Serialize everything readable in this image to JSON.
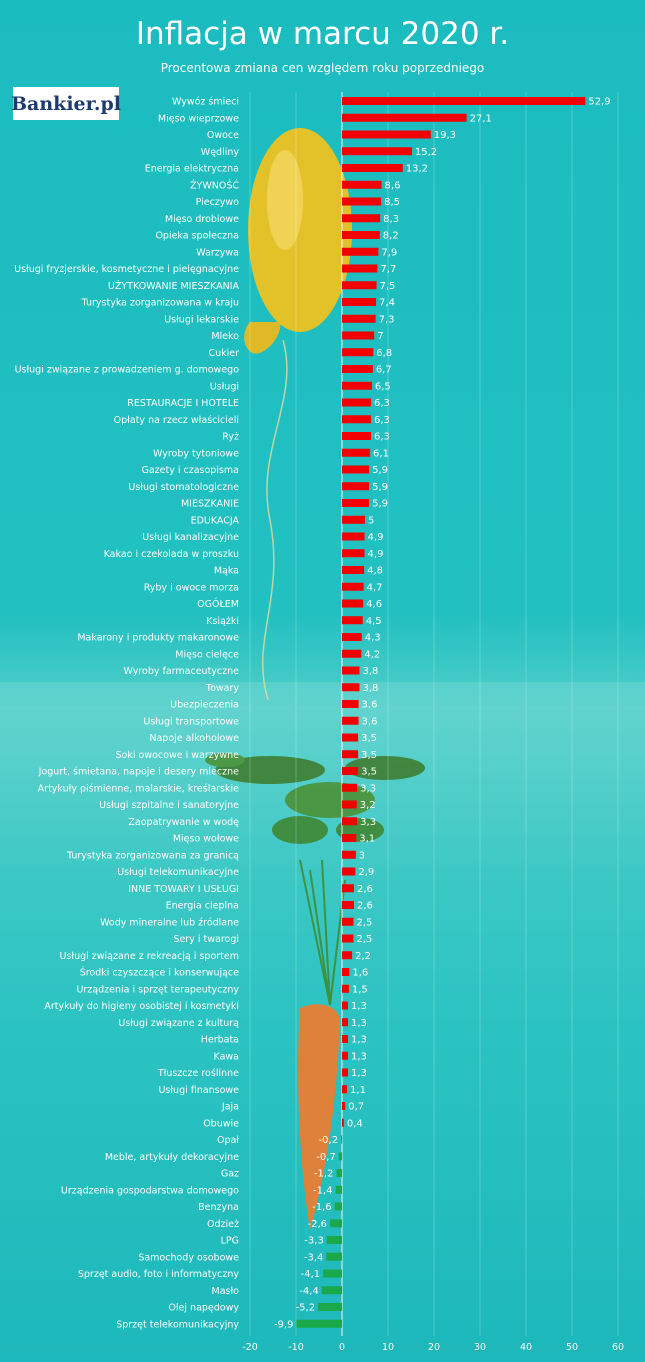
{
  "header": {
    "title": "Inflacja  w marcu 2020 r.",
    "subtitle": "Procentowa zmiana cen względem roku poprzedniego",
    "logo_text": "Bankier.pl"
  },
  "colors": {
    "positive": "#f20000",
    "negative": "#1aa84a",
    "gridline": "#ffffff"
  },
  "chart_data": {
    "type": "bar",
    "orientation": "horizontal",
    "title": "Inflacja  w marcu 2020 r.",
    "subtitle": "Procentowa zmiana cen względem roku poprzedniego",
    "xlim": [
      -20,
      60
    ],
    "xticks": [
      -20,
      -10,
      0,
      10,
      20,
      30,
      40,
      50,
      60
    ],
    "grid": true,
    "categories": [
      "Wywóz śmieci",
      "Mięso wieprzowe",
      "Owoce",
      "Wędliny",
      "Energia elektryczna",
      "ŻYWNOŚĆ",
      "Pieczywo",
      "Mięso drobiowe",
      "Opieka społeczna",
      "Warzywa",
      "Usługi fryzjerskie, kosmetyczne i pielęgnacyjne",
      "UŻYTKOWANIE MIESZKANIA",
      "Turystyka zorganizowana w kraju",
      "Usługi lekarskie",
      "Mleko",
      "Cukier",
      "Usługi związane z prowadzeniem g. domowego",
      "Usługi",
      "RESTAURACJE I HOTELE",
      "Opłaty na rzecz właścicieli",
      "Ryż",
      "Wyroby tytoniowe",
      "Gazety i czasopisma",
      "Usługi stomatologiczne",
      "MIESZKANIE",
      "EDUKACJA",
      "Usługi kanalizacyjne",
      "Kakao i czekolada w proszku",
      "Mąka",
      "Ryby i owoce morza",
      "OGÓŁEM",
      "Książki",
      "Makarony i produkty makaronowe",
      "Mięso cielęce",
      "Wyroby farmaceutyczne",
      "Towary",
      "Ubezpieczenia",
      "Usługi transportowe",
      "Napoje alkoholowe",
      "Soki owocowe i warzywne",
      "Jogurt, śmietana, napoje i desery mleczne",
      "Artykuły piśmienne, malarskie, kreślarskie",
      "Usługi szpitalne i sanatoryjne",
      "Zaopatrywanie w wodę",
      "Mięso wołowe",
      "Turystyka zorganizowana za granicą",
      "Usługi telekomunikacyjne",
      "INNE TOWARY I USŁUGI",
      "Energia cieplna",
      "Wody mineralne lub źródlane",
      "Sery i twarogi",
      "Usługi związane z rekreacją i sportem",
      "Środki czyszczące i konserwujące",
      "Urządzenia i sprzęt terapeutyczny",
      "Artykuły do higieny osobistej i kosmetyki",
      "Usługi związane z kulturą",
      "Herbata",
      "Kawa",
      "Tłuszcze roślinne",
      "Usługi finansowe",
      "Jaja",
      "Obuwie",
      "Opał",
      "Meble, artykuły dekoracyjne",
      "Gaz",
      "Urządzenia gospodarstwa domowego",
      "Benzyna",
      "Odzież",
      "LPG",
      "Samochody osobowe",
      "Sprzęt audio, foto i informatyczny",
      "Masło",
      "Olej napędowy",
      "Sprzęt telekomunikacyjny"
    ],
    "values": [
      52.9,
      27.1,
      19.3,
      15.2,
      13.2,
      8.6,
      8.5,
      8.3,
      8.2,
      7.9,
      7.7,
      7.5,
      7.4,
      7.3,
      7,
      6.8,
      6.7,
      6.5,
      6.3,
      6.3,
      6.3,
      6.1,
      5.9,
      5.9,
      5.9,
      5,
      4.9,
      4.9,
      4.8,
      4.7,
      4.6,
      4.5,
      4.3,
      4.2,
      3.8,
      3.8,
      3.6,
      3.6,
      3.5,
      3.5,
      3.5,
      3.3,
      3.2,
      3.3,
      3.1,
      3,
      2.9,
      2.6,
      2.6,
      2.5,
      2.5,
      2.2,
      1.6,
      1.5,
      1.3,
      1.3,
      1.3,
      1.3,
      1.3,
      1.1,
      0.7,
      0.4,
      -0.2,
      -0.7,
      -1.2,
      -1.4,
      -1.6,
      -2.6,
      -3.3,
      -3.4,
      -4.1,
      -4.4,
      -5.2,
      -9.9
    ],
    "value_labels": [
      "52,9",
      "27,1",
      "19,3",
      "15,2",
      "13,2",
      "8,6",
      "8,5",
      "8,3",
      "8,2",
      "7,9",
      "7,7",
      "7,5",
      "7,4",
      "7,3",
      "7",
      "6,8",
      "6,7",
      "6,5",
      "6,3",
      "6,3",
      "6,3",
      "6,1",
      "5,9",
      "5,9",
      "5,9",
      "5",
      "4,9",
      "4,9",
      "4,8",
      "4,7",
      "4,6",
      "4,5",
      "4,3",
      "4,2",
      "3,8",
      "3,8",
      "3,6",
      "3,6",
      "3,5",
      "3,5",
      "3,5",
      "3,3",
      "3,2",
      "3,3",
      "3,1",
      "3",
      "2,9",
      "2,6",
      "2,6",
      "2,5",
      "2,5",
      "2,2",
      "1,6",
      "1,5",
      "1,3",
      "1,3",
      "1,3",
      "1,3",
      "1,3",
      "1,1",
      "0,7",
      "0,4",
      "-0,2",
      "-0,7",
      "-1,2",
      "-1,4",
      "-1,6",
      "-2,6",
      "-3,3",
      "-3,4",
      "-4,1",
      "-4,4",
      "-5,2",
      "-9,9"
    ]
  }
}
